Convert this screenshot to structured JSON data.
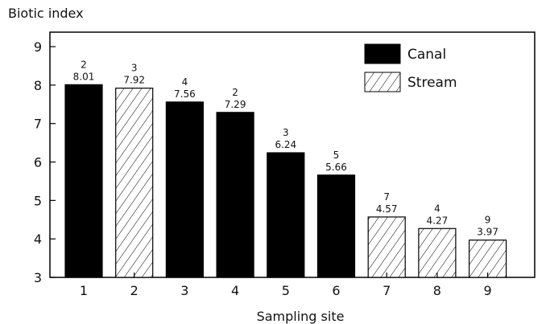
{
  "chart_data": {
    "type": "bar",
    "ylabel": "Biotic index",
    "xlabel": "Sampling site",
    "ylim": [
      3,
      9
    ],
    "yticks": [
      "3",
      "4",
      "5",
      "6",
      "7",
      "8",
      "9"
    ],
    "categories": [
      "1",
      "2",
      "3",
      "4",
      "5",
      "6",
      "7",
      "8",
      "9"
    ],
    "values": [
      8.01,
      7.92,
      7.56,
      7.29,
      6.24,
      5.66,
      4.57,
      4.27,
      3.97
    ],
    "value_labels": [
      "8.01",
      "7.92",
      "7.56",
      "7.29",
      "6.24",
      "5.66",
      "4.57",
      "4.27",
      "3.97"
    ],
    "count_labels": [
      "2",
      "3",
      "4",
      "2",
      "3",
      "5",
      "7",
      "4",
      "9"
    ],
    "bar_series": [
      "Canal",
      "Stream",
      "Canal",
      "Canal",
      "Canal",
      "Canal",
      "Stream",
      "Stream",
      "Stream"
    ],
    "legend": {
      "placement": "top-right",
      "entries": [
        {
          "name": "Canal",
          "style": "solid",
          "color": "#000000"
        },
        {
          "name": "Stream",
          "style": "hatched",
          "color": "#000000"
        }
      ]
    },
    "grid": false
  }
}
